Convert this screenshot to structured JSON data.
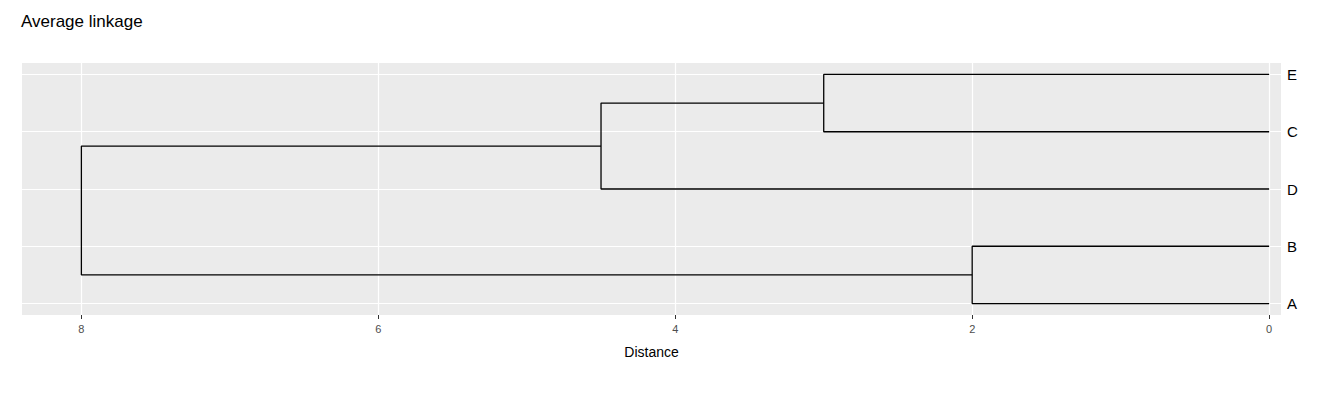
{
  "chart_data": {
    "type": "dendrogram",
    "title": "Average linkage",
    "x_label": "Distance",
    "xlim": [
      8.4,
      -0.08
    ],
    "xticks": [
      8,
      6,
      4,
      2,
      0
    ],
    "grid": true,
    "tree": {
      "height": 8,
      "children": [
        {
          "height": 4.5,
          "children": [
            {
              "height": 3,
              "children": [
                "E",
                "C"
              ]
            },
            "D"
          ]
        },
        {
          "height": 2,
          "children": [
            "B",
            "A"
          ]
        }
      ]
    }
  }
}
